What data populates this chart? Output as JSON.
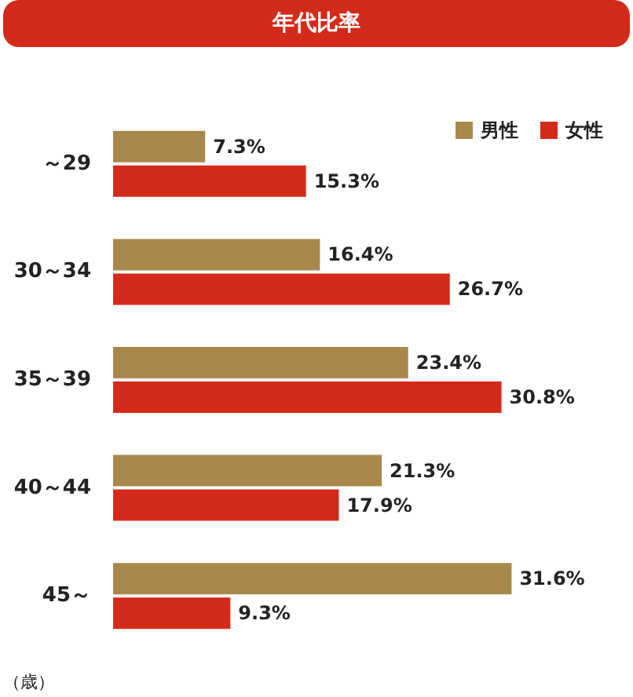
{
  "chart_data": {
    "type": "bar",
    "orientation": "horizontal",
    "title": "年代比率",
    "ylabel": "（歳）",
    "categories": [
      "～29",
      "30～34",
      "35～39",
      "40～44",
      "45～"
    ],
    "series": [
      {
        "name": "男性",
        "color": "#a8884a",
        "values": [
          7.3,
          16.4,
          23.4,
          21.3,
          31.6
        ],
        "value_labels": [
          "7.3%",
          "16.4%",
          "23.4%",
          "21.3%",
          "31.6%"
        ]
      },
      {
        "name": "女性",
        "color": "#d42a1a",
        "values": [
          15.3,
          26.7,
          30.8,
          17.9,
          9.3
        ],
        "value_labels": [
          "15.3%",
          "26.7%",
          "30.8%",
          "17.9%",
          "9.3%"
        ]
      }
    ],
    "legend": "top right"
  }
}
